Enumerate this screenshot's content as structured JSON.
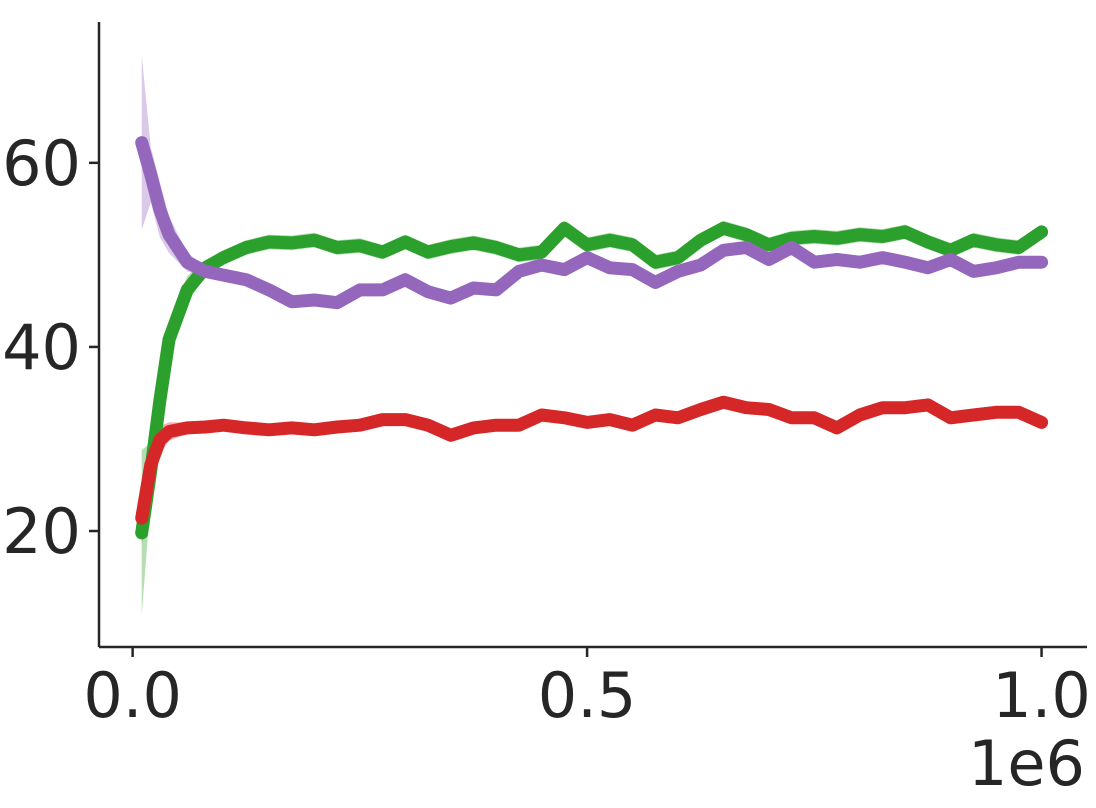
{
  "chart_data": {
    "type": "line",
    "x": [
      0.01,
      0.02,
      0.03,
      0.04,
      0.06,
      0.08,
      0.1,
      0.125,
      0.15,
      0.175,
      0.2,
      0.225,
      0.25,
      0.275,
      0.3,
      0.325,
      0.35,
      0.375,
      0.4,
      0.425,
      0.45,
      0.475,
      0.5,
      0.525,
      0.55,
      0.575,
      0.6,
      0.625,
      0.65,
      0.675,
      0.7,
      0.725,
      0.75,
      0.775,
      0.8,
      0.825,
      0.85,
      0.875,
      0.9,
      0.925,
      0.95,
      0.975,
      1.0
    ],
    "x_offset": "1e6",
    "series": [
      {
        "color": "#2ca02c",
        "values": [
          19.8,
          26.6,
          34.2,
          40.8,
          46.2,
          48.6,
          49.7,
          50.8,
          51.4,
          51.3,
          51.6,
          50.8,
          51.0,
          50.3,
          51.4,
          50.3,
          50.9,
          51.3,
          50.8,
          50.0,
          50.3,
          52.9,
          51.1,
          51.6,
          51.1,
          49.2,
          49.7,
          51.6,
          52.9,
          52.2,
          51.1,
          51.8,
          52.0,
          51.8,
          52.2,
          52.0,
          52.5,
          51.4,
          50.5,
          51.6,
          51.1,
          50.8,
          52.5
        ],
        "err": [
          9,
          3,
          2.5,
          2,
          1.5,
          0.8,
          0.8,
          0.8,
          0.8,
          0.8,
          0.8,
          0.8,
          0.8,
          0.8,
          0.8,
          0.8,
          0.8,
          0.8,
          0.8,
          0.8,
          0.8,
          0.8,
          0.8,
          0.8,
          0.8,
          0.8,
          0.8,
          0.8,
          0.8,
          0.8,
          0.8,
          0.8,
          0.8,
          0.8,
          0.8,
          0.8,
          0.8,
          0.8,
          0.8,
          0.8,
          0.8,
          0.8,
          0.8
        ]
      },
      {
        "color": "#9467bd",
        "values": [
          62.2,
          58.7,
          54.9,
          52.2,
          49.2,
          48.2,
          47.8,
          47.3,
          46.2,
          44.9,
          45.1,
          44.8,
          46.2,
          46.2,
          47.3,
          46.0,
          45.3,
          46.4,
          46.2,
          48.2,
          48.9,
          48.4,
          49.7,
          48.6,
          48.4,
          47.0,
          48.2,
          48.9,
          50.5,
          50.8,
          49.5,
          50.8,
          49.2,
          49.5,
          49.2,
          49.7,
          49.2,
          48.6,
          49.5,
          48.2,
          48.6,
          49.2,
          49.2
        ],
        "err": [
          9.5,
          3,
          3,
          2,
          1,
          0.6,
          0.6,
          0.6,
          0.6,
          0.6,
          0.6,
          0.6,
          0.6,
          0.6,
          0.6,
          0.6,
          0.6,
          0.6,
          0.6,
          0.6,
          0.6,
          0.6,
          0.6,
          0.6,
          0.6,
          0.6,
          0.6,
          0.6,
          0.6,
          0.6,
          0.6,
          0.6,
          0.6,
          0.6,
          0.6,
          0.6,
          0.6,
          0.6,
          0.6,
          0.6,
          0.6,
          0.6,
          0.6
        ]
      },
      {
        "color": "#d62728",
        "values": [
          21.4,
          27.2,
          29.9,
          30.8,
          31.2,
          31.3,
          31.5,
          31.2,
          31.0,
          31.2,
          31.0,
          31.3,
          31.5,
          32.1,
          32.1,
          31.5,
          30.4,
          31.2,
          31.5,
          31.5,
          32.6,
          32.3,
          31.8,
          32.1,
          31.5,
          32.6,
          32.3,
          33.2,
          34.0,
          33.4,
          33.2,
          32.3,
          32.3,
          31.2,
          32.6,
          33.4,
          33.4,
          33.7,
          32.3,
          32.6,
          32.9,
          32.9,
          31.8
        ],
        "err": [
          3,
          2,
          1.5,
          1,
          0.6,
          0.6,
          0.6,
          0.6,
          0.6,
          0.6,
          0.6,
          0.6,
          0.6,
          0.6,
          0.6,
          0.6,
          0.6,
          0.6,
          0.6,
          0.6,
          0.6,
          0.6,
          0.6,
          0.6,
          0.6,
          0.6,
          0.6,
          0.6,
          0.6,
          0.6,
          0.6,
          0.6,
          0.6,
          0.6,
          0.6,
          0.6,
          0.6,
          0.6,
          0.6,
          0.6,
          0.6,
          0.6,
          0.6
        ]
      }
    ],
    "xlim": [
      -0.037,
      1.05
    ],
    "ylim": [
      7.4,
      75.3
    ],
    "xticks": [
      {
        "value": 0,
        "label": "0.0"
      },
      0.5,
      {
        "value": 1,
        "label": "1.0"
      }
    ],
    "yticks": [
      20,
      40,
      60
    ],
    "grid": false
  }
}
